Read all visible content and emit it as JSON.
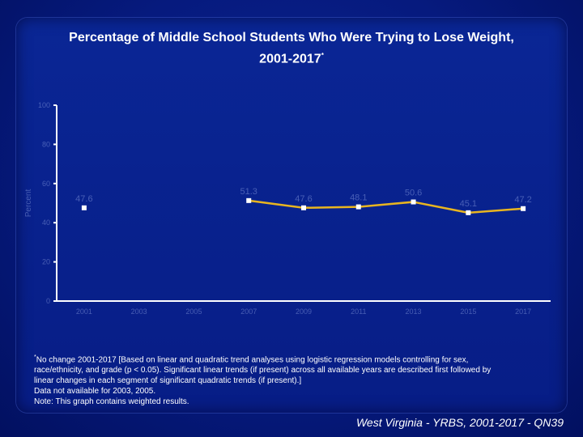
{
  "title_line1": "Percentage of Middle School Students Who Were Trying to Lose Weight,",
  "title_line2": "2001-2017",
  "title_mark": "*",
  "chart_data": {
    "type": "line",
    "title": "Percentage of Middle School Students Who Were Trying to Lose Weight, 2001-2017",
    "ylabel": "Percent",
    "ylim": [
      0,
      100
    ],
    "yticks": [
      0,
      20,
      40,
      60,
      80,
      100
    ],
    "categories": [
      "2001",
      "2003",
      "2005",
      "2007",
      "2009",
      "2011",
      "2013",
      "2015",
      "2017"
    ],
    "values": [
      47.6,
      null,
      null,
      51.3,
      47.6,
      48.1,
      50.6,
      45.1,
      47.2
    ],
    "labels": [
      "47.6",
      "",
      "",
      "51.3",
      "47.6",
      "48.1",
      "50.6",
      "45.1",
      "47.2"
    ],
    "colors": {
      "line": "#e8b520",
      "marker": "#ffffff",
      "axis": "#ffffff",
      "text": "#ffffff"
    }
  },
  "footnote": {
    "mark": "*",
    "lines": [
      "No change 2001-2017 [Based on linear and quadratic trend analyses using logistic regression models controlling for sex,",
      "race/ethnicity, and grade (p < 0.05). Significant linear trends (if present) across all available years are described first followed by",
      "linear changes in each segment of significant quadratic trends (if present).]",
      "Data not available for 2003, 2005.",
      "Note: This graph contains weighted results."
    ]
  },
  "source": "West Virginia - YRBS, 2001-2017 - QN39"
}
